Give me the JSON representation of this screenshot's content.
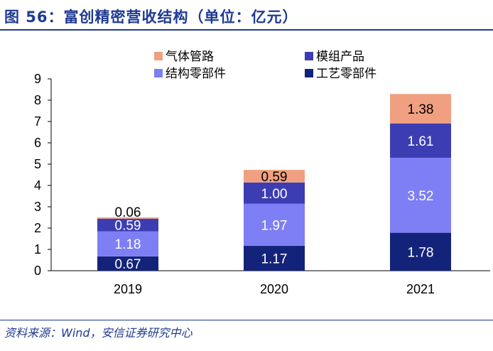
{
  "title": "图 56：富创精密营收结构（单位：亿元）",
  "source": "资料来源：Wind，安信证券研究中心",
  "chart_data": {
    "type": "bar",
    "stacked": true,
    "categories": [
      "2019",
      "2020",
      "2021"
    ],
    "series": [
      {
        "name": "工艺零部件",
        "color": "#14237a",
        "values": [
          0.67,
          1.17,
          1.78
        ],
        "labels": [
          "0.67",
          "1.17",
          "1.78"
        ],
        "label_color": "#ffffff"
      },
      {
        "name": "结构零部件",
        "color": "#7e7ef5",
        "values": [
          1.18,
          1.97,
          3.52
        ],
        "labels": [
          "1.18",
          "1.97",
          "3.52"
        ],
        "label_color": "#ffffff"
      },
      {
        "name": "模组产品",
        "color": "#3d3db3",
        "values": [
          0.59,
          1.0,
          1.61
        ],
        "labels": [
          "0.59",
          "1.00",
          "1.61"
        ],
        "label_color": "#ffffff"
      },
      {
        "name": "气体管路",
        "color": "#f0a080",
        "values": [
          0.06,
          0.59,
          1.38
        ],
        "labels": [
          "0.06",
          "0.59",
          "1.38"
        ],
        "label_color": "#000000"
      }
    ],
    "ylim": [
      0,
      9
    ],
    "yticks": [
      0,
      1,
      2,
      3,
      4,
      5,
      6,
      7,
      8,
      9
    ],
    "legend": [
      {
        "name": "气体管路",
        "color": "#f0a080"
      },
      {
        "name": "模组产品",
        "color": "#3d3db3"
      },
      {
        "name": "结构零部件",
        "color": "#7e7ef5"
      },
      {
        "name": "工艺零部件",
        "color": "#14237a"
      }
    ],
    "legend_position": "top",
    "grid": false
  }
}
